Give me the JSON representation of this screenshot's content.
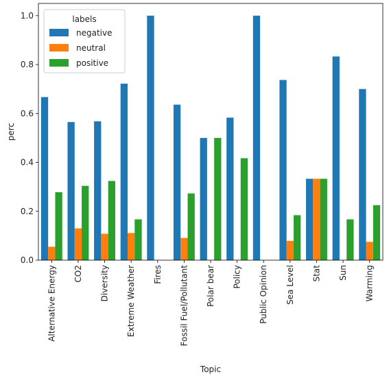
{
  "chart_data": {
    "type": "bar",
    "xlabel": "Topic",
    "ylabel": "perc",
    "ylim": [
      0,
      1.05
    ],
    "yticks": [
      "0.0",
      "0.2",
      "0.4",
      "0.6",
      "0.8",
      "1.0"
    ],
    "categories": [
      "Alternative Energy",
      "CO2",
      "Diversity",
      "Extreme Weather",
      "Fires",
      "Fossil Fuel/Pollutant",
      "Polar bear",
      "Policy",
      "Public Opinion",
      "Sea Level",
      "Stat",
      "Sun",
      "Warming"
    ],
    "legend": {
      "title": "labels",
      "placement": "top-left"
    },
    "series": [
      {
        "name": "negative",
        "color": "#1f77b4",
        "values": [
          0.667,
          0.565,
          0.568,
          0.722,
          1.0,
          0.636,
          0.5,
          0.583,
          1.0,
          0.737,
          0.333,
          0.833,
          0.7
        ]
      },
      {
        "name": "neutral",
        "color": "#ff7f0e",
        "values": [
          0.055,
          0.13,
          0.108,
          0.111,
          0.0,
          0.091,
          0.0,
          0.0,
          0.0,
          0.079,
          0.333,
          0.0,
          0.075
        ]
      },
      {
        "name": "positive",
        "color": "#2ca02c",
        "values": [
          0.278,
          0.304,
          0.324,
          0.167,
          0.0,
          0.273,
          0.5,
          0.417,
          0.0,
          0.184,
          0.333,
          0.167,
          0.225
        ]
      }
    ]
  }
}
